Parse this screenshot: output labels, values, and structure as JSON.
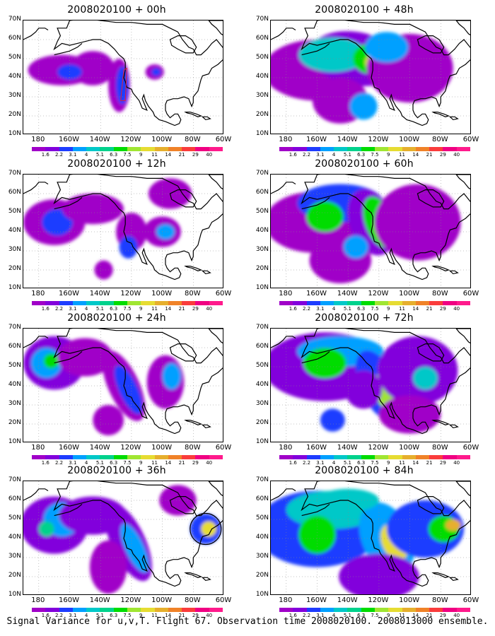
{
  "caption": "Signal Variance for u,v,T. Flight 67. Observation time 2008020100. 2008013000 ensemble.",
  "lat_labels": [
    "70N",
    "60N",
    "50N",
    "40N",
    "30N",
    "20N",
    "10N"
  ],
  "lon_labels": [
    "180",
    "160W",
    "140W",
    "120W",
    "100W",
    "80W",
    "60W"
  ],
  "colorbar": {
    "labels": [
      "1.6",
      "2.2",
      "3.1",
      "4",
      "5.1",
      "6.3",
      "7.5",
      "9",
      "11",
      "14",
      "21",
      "29",
      "40"
    ],
    "colors": [
      "#a000c8",
      "#8200dc",
      "#1e3cff",
      "#00a0ff",
      "#00c8c8",
      "#00d28c",
      "#00dc00",
      "#a0e632",
      "#e6dc32",
      "#e6af2d",
      "#f08228",
      "#fa3c3c",
      "#f00082",
      "#ff1a8c"
    ]
  },
  "panels": [
    {
      "title": "2008020100 + 00h",
      "circle": false
    },
    {
      "title": "2008020100 + 48h",
      "circle": false
    },
    {
      "title": "2008020100 + 12h",
      "circle": false
    },
    {
      "title": "2008020100 + 60h",
      "circle": false
    },
    {
      "title": "2008020100 + 24h",
      "circle": false
    },
    {
      "title": "2008020100 + 72h",
      "circle": false
    },
    {
      "title": "2008020100 + 36h",
      "circle": true
    },
    {
      "title": "2008020100 + 84h",
      "circle": false
    }
  ]
}
